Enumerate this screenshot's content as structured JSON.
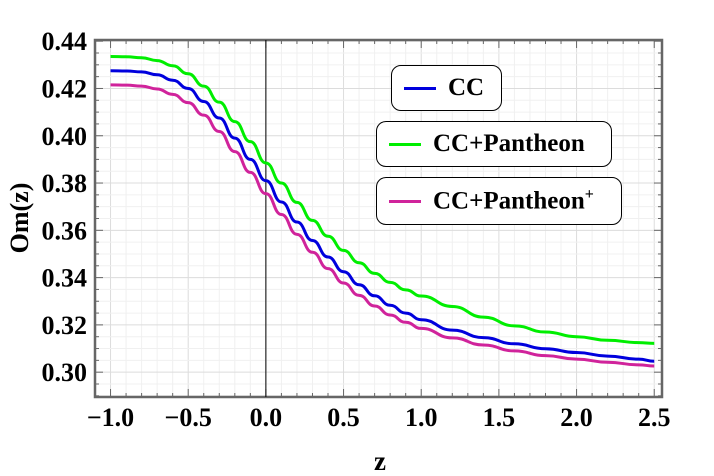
{
  "chart_data": {
    "type": "line",
    "title": "",
    "xlabel": "z",
    "ylabel": "Om(z)",
    "xlim": [
      -1.1,
      2.55
    ],
    "ylim": [
      0.2895,
      0.4405
    ],
    "x_ticks": [
      -1.0,
      -0.5,
      0.0,
      0.5,
      1.0,
      1.5,
      2.0,
      2.5
    ],
    "x_tick_labels": [
      "−1.0",
      "−0.5",
      "0.0",
      "0.5",
      "1.0",
      "1.5",
      "2.0",
      "2.5"
    ],
    "y_ticks": [
      0.3,
      0.32,
      0.34,
      0.36,
      0.38,
      0.4,
      0.42,
      0.44
    ],
    "y_tick_labels": [
      "0.30",
      "0.32",
      "0.34",
      "0.36",
      "0.38",
      "0.40",
      "0.42",
      "0.44"
    ],
    "grid": true,
    "legend_position": "top-right",
    "x": [
      -1.0,
      -0.9,
      -0.8,
      -0.7,
      -0.6,
      -0.5,
      -0.4,
      -0.3,
      -0.2,
      -0.1,
      0.0,
      0.1,
      0.2,
      0.3,
      0.4,
      0.5,
      0.6,
      0.7,
      0.8,
      0.9,
      1.0,
      1.2,
      1.4,
      1.6,
      1.8,
      2.0,
      2.2,
      2.4,
      2.5
    ],
    "series": [
      {
        "name": "CC",
        "color": "#0000dd",
        "values": [
          0.4275,
          0.4274,
          0.427,
          0.4258,
          0.4235,
          0.42,
          0.4145,
          0.4075,
          0.399,
          0.39,
          0.381,
          0.372,
          0.3635,
          0.3557,
          0.3487,
          0.3425,
          0.337,
          0.3323,
          0.3283,
          0.325,
          0.3222,
          0.3178,
          0.3146,
          0.312,
          0.3099,
          0.3083,
          0.3068,
          0.3055,
          0.3046
        ]
      },
      {
        "name": "CC+Pantheon",
        "color": "#00ee00",
        "values": [
          0.4335,
          0.4334,
          0.433,
          0.4318,
          0.4296,
          0.4262,
          0.421,
          0.4142,
          0.406,
          0.3975,
          0.3885,
          0.38,
          0.3718,
          0.3642,
          0.3575,
          0.3515,
          0.3463,
          0.3418,
          0.338,
          0.3348,
          0.3322,
          0.3278,
          0.3233,
          0.3196,
          0.317,
          0.315,
          0.3135,
          0.3125,
          0.3122
        ]
      },
      {
        "name": "CC+Pantheon",
        "superscript": "+",
        "color": "#d0239b",
        "values": [
          0.4215,
          0.4214,
          0.421,
          0.4198,
          0.4175,
          0.414,
          0.4087,
          0.4018,
          0.3933,
          0.3845,
          0.3755,
          0.3667,
          0.3583,
          0.3507,
          0.3438,
          0.3377,
          0.3325,
          0.328,
          0.3242,
          0.3211,
          0.3185,
          0.3145,
          0.3115,
          0.309,
          0.307,
          0.3055,
          0.3042,
          0.3031,
          0.3026
        ]
      }
    ],
    "vertical_line_x": 0.0
  }
}
